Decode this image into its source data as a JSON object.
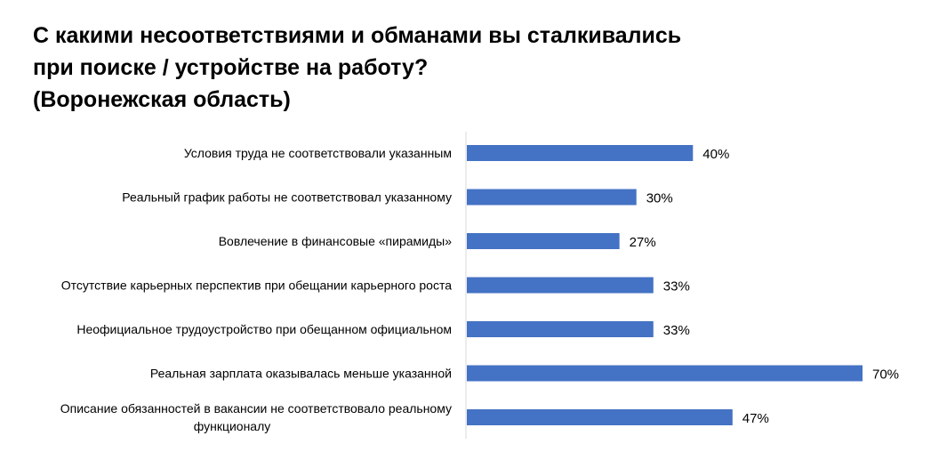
{
  "title_lines": [
    "С какими несоответствиями и обманами вы сталкивались",
    "при поиске / устройстве на работу?",
    "(Воронежская область)"
  ],
  "chart_data": {
    "type": "bar",
    "orientation": "horizontal",
    "title": "С какими несоответствиями и обманами вы сталкивались при поиске / устройстве на работу? (Воронежская область)",
    "categories": [
      [
        "Условия труда не соответствовали указанным"
      ],
      [
        "Реальный график работы не соответствовал указанному"
      ],
      [
        "Вовлечение в финансовые «пирамиды»"
      ],
      [
        "Отсутствие карьерных перспектив при обещании карьерного роста"
      ],
      [
        "Неофициальное трудоустройство при обещанном официальном"
      ],
      [
        "Реальная зарплата оказывалась меньше указанной"
      ],
      [
        "Описание обязанностей в вакансии не соответствовало реальному",
        "функционалу"
      ]
    ],
    "values": [
      40,
      30,
      27,
      33,
      33,
      70,
      47
    ],
    "labels": [
      "40%",
      "30%",
      "27%",
      "33%",
      "33%",
      "70%",
      "47%"
    ],
    "xlim": [
      0,
      70
    ],
    "grid": false,
    "legend": "none",
    "colors": {
      "bar": "#4472C4",
      "axis": "#D9D9D9",
      "text": "#000000"
    }
  }
}
